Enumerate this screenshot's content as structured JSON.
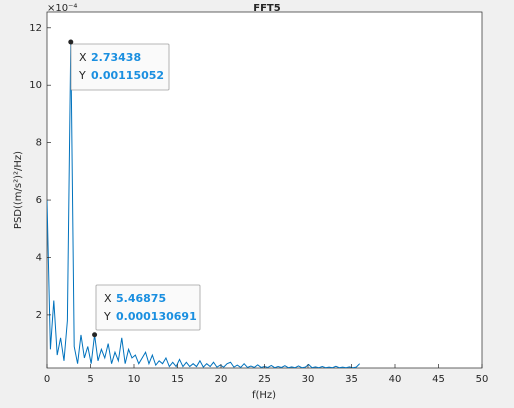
{
  "chart_data": {
    "type": "line",
    "title": "FFT5",
    "xlabel": "f(Hz)",
    "ylabel": "PSD((m/s²)²/Hz)",
    "y_exponent_label": "×10⁻⁴",
    "xlim": [
      0,
      50
    ],
    "xticks": [
      0,
      5,
      10,
      15,
      20,
      25,
      30,
      35,
      40,
      45,
      50
    ],
    "ylim": [
      1.5e-05,
      0.001255
    ],
    "yticks": [
      {
        "value": 0.0002,
        "label": "2"
      },
      {
        "value": 0.0004,
        "label": "4"
      },
      {
        "value": 0.0006,
        "label": "6"
      },
      {
        "value": 0.0008,
        "label": "8"
      },
      {
        "value": 0.001,
        "label": "10"
      },
      {
        "value": 0.0012,
        "label": "12"
      }
    ],
    "series": [
      {
        "color": "#0072bd",
        "x": [
          0,
          0.390625,
          0.78125,
          1.171875,
          1.5625,
          1.953125,
          2.34375,
          2.734375,
          3.125,
          3.515625,
          3.90625,
          4.296875,
          4.6875,
          5.078125,
          5.46875,
          5.859375,
          6.25,
          6.640625,
          7.03125,
          7.421875,
          7.8125,
          8.203125,
          8.59375,
          8.984375,
          9.375,
          9.765625,
          10.15625,
          10.546875,
          10.9375,
          11.328125,
          11.71875,
          12.109375,
          12.5,
          12.890625,
          13.28125,
          13.671875,
          14.0625,
          14.453125,
          14.84375,
          15.234375,
          15.625,
          16.015625,
          16.40625,
          16.796875,
          17.1875,
          17.578125,
          17.96875,
          18.359375,
          18.75,
          19.140625,
          19.53125,
          19.921875,
          20.3125,
          20.703125,
          21.09375,
          21.484375,
          21.875,
          22.265625,
          22.65625,
          23.046875,
          23.4375,
          23.828125,
          24.21875,
          24.609375,
          25,
          25.390625,
          25.78125,
          26.171875,
          26.5625,
          26.953125,
          27.34375,
          27.734375,
          28.125,
          28.515625,
          28.90625,
          29.296875,
          29.6875,
          30.078125,
          30.46875,
          30.859375,
          31.25,
          31.640625,
          32.03125,
          32.421875,
          32.8125,
          33.203125,
          33.59375,
          33.984375,
          34.375,
          34.765625,
          35.15625,
          35.546875,
          35.9375
        ],
        "values": [
          0.0006,
          8e-05,
          0.00025,
          6e-05,
          0.00012,
          4e-05,
          0.00018,
          0.00115052,
          9e-05,
          3e-05,
          0.00013,
          5e-05,
          9e-05,
          3e-05,
          0.000130691,
          4e-05,
          8e-05,
          5e-05,
          0.0001,
          3e-05,
          7e-05,
          4e-05,
          0.00012,
          3e-05,
          8e-05,
          5e-05,
          6e-05,
          3e-05,
          5e-05,
          7e-05,
          3e-05,
          6e-05,
          2.5e-05,
          4e-05,
          3e-05,
          5e-05,
          2e-05,
          3.5e-05,
          2e-05,
          4.5e-05,
          2e-05,
          3.5e-05,
          2e-05,
          3e-05,
          2e-05,
          4e-05,
          1.8e-05,
          3e-05,
          2e-05,
          3.5e-05,
          1.8e-05,
          2.5e-05,
          1.8e-05,
          3e-05,
          3.5e-05,
          1.8e-05,
          2.5e-05,
          1.7e-05,
          3e-05,
          1.7e-05,
          2.2e-05,
          1.7e-05,
          2.6e-05,
          1.7e-05,
          2e-05,
          1.7e-05,
          2.4e-05,
          1.6e-05,
          2e-05,
          1.7e-05,
          2.3e-05,
          1.6e-05,
          1.9e-05,
          1.6e-05,
          2.2e-05,
          1.6e-05,
          1.8e-05,
          2.7e-05,
          1.6e-05,
          1.9e-05,
          1.6e-05,
          2e-05,
          1.6e-05,
          1.8e-05,
          1.6e-05,
          2.1e-05,
          1.6e-05,
          1.8e-05,
          1.6e-05,
          1.9e-05,
          1.6e-05,
          1.8e-05,
          3e-05
        ]
      }
    ],
    "annotations": [
      {
        "x_label": "X",
        "x": 2.73438,
        "y_label": "Y",
        "y": 0.00115052
      },
      {
        "x_label": "X",
        "x": 5.46875,
        "y_label": "Y",
        "y": 0.000130691
      }
    ]
  }
}
